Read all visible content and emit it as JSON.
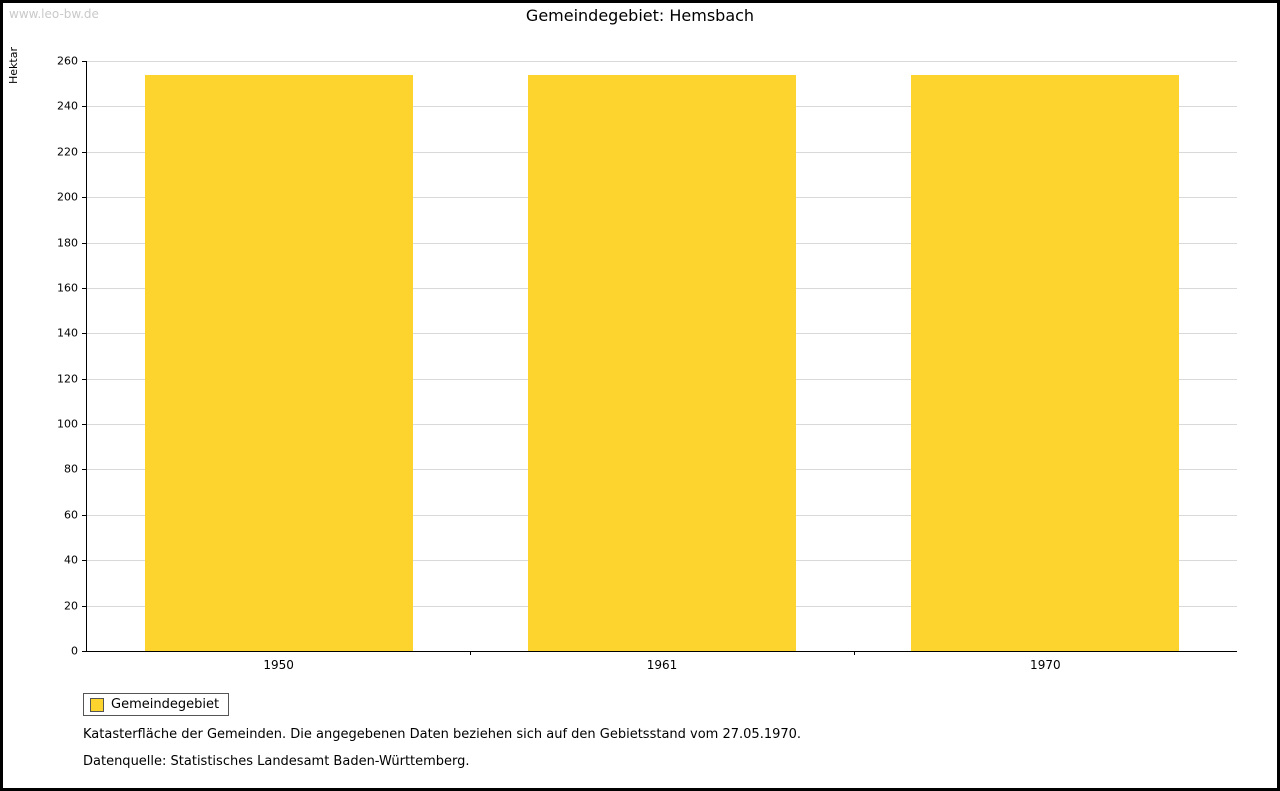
{
  "watermark": "www.leo-bw.de",
  "title": "Gemeindegebiet: Hemsbach",
  "chart_data": {
    "type": "bar",
    "title": "Gemeindegebiet: Hemsbach",
    "categories": [
      "1950",
      "1961",
      "1970"
    ],
    "series": [
      {
        "name": "Gemeindegebiet",
        "values": [
          254,
          254,
          254
        ],
        "color": "#fcd42d"
      }
    ],
    "xlabel": "",
    "ylabel": "Hektar",
    "ylim": [
      0,
      260
    ],
    "ytick_step": 20,
    "grid": true,
    "legend_position": "bottom-left"
  },
  "legend": {
    "label": "Gemeindegebiet",
    "swatch_color": "#fcd42d"
  },
  "caption": {
    "line1": "Katasterfläche der Gemeinden. Die angegebenen Daten beziehen sich auf den Gebietsstand vom 27.05.1970.",
    "line2": "Datenquelle: Statistisches Landesamt Baden-Württemberg."
  }
}
